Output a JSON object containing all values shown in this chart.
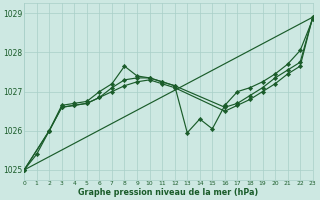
{
  "background_color": "#cde8e2",
  "grid_color": "#a8cfc8",
  "line_color": "#1a5c2a",
  "xlim": [
    0,
    23
  ],
  "ylim": [
    1024.75,
    1029.25
  ],
  "yticks": [
    1025,
    1026,
    1027,
    1028,
    1029
  ],
  "xticks": [
    0,
    1,
    2,
    3,
    4,
    5,
    6,
    7,
    8,
    9,
    10,
    11,
    12,
    13,
    14,
    15,
    16,
    17,
    18,
    19,
    20,
    21,
    22,
    23
  ],
  "xlabel": "Graphe pression niveau de la mer (hPa)",
  "line1_x": [
    0,
    23
  ],
  "line1_y": [
    1025.0,
    1028.9
  ],
  "line2_x": [
    0,
    2,
    3,
    4,
    5,
    6,
    7,
    8,
    9,
    10,
    11,
    12,
    16,
    17,
    18,
    19,
    20,
    21,
    22,
    23
  ],
  "line2_y": [
    1025.0,
    1026.0,
    1026.6,
    1026.65,
    1026.7,
    1026.85,
    1027.0,
    1027.15,
    1027.25,
    1027.3,
    1027.2,
    1027.1,
    1026.5,
    1026.65,
    1026.8,
    1027.0,
    1027.2,
    1027.45,
    1027.65,
    1028.9
  ],
  "line3_x": [
    0,
    2,
    3,
    4,
    5,
    6,
    7,
    8,
    9,
    10,
    11,
    12,
    16,
    17,
    18,
    19,
    20,
    21,
    22,
    23
  ],
  "line3_y": [
    1025.0,
    1026.0,
    1026.6,
    1026.65,
    1026.7,
    1026.85,
    1027.1,
    1027.3,
    1027.35,
    1027.35,
    1027.25,
    1027.15,
    1026.6,
    1026.7,
    1026.9,
    1027.1,
    1027.35,
    1027.55,
    1027.75,
    1028.9
  ],
  "line4_x": [
    0,
    1,
    2,
    3,
    4,
    5,
    6,
    7,
    8,
    9,
    10,
    11,
    12,
    13,
    14,
    15,
    16,
    17,
    18,
    19,
    20,
    21,
    22,
    23
  ],
  "line4_y": [
    1025.0,
    1025.4,
    1026.0,
    1026.65,
    1026.7,
    1026.75,
    1027.0,
    1027.2,
    1027.65,
    1027.4,
    1027.35,
    1027.25,
    1027.15,
    1025.95,
    1026.3,
    1026.05,
    1026.65,
    1027.0,
    1027.1,
    1027.25,
    1027.45,
    1027.7,
    1028.05,
    1028.85
  ]
}
